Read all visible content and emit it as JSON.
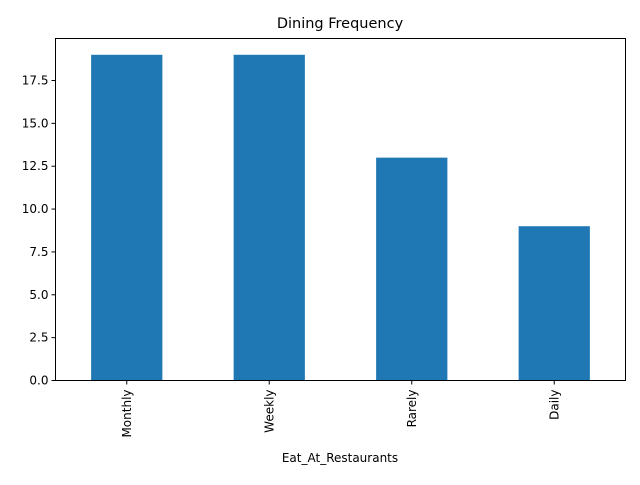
{
  "chart_data": {
    "type": "bar",
    "title": "Dining Frequency",
    "xlabel": "Eat_At_Restaurants",
    "ylabel": "",
    "categories": [
      "Monthly",
      "Weekly",
      "Rarely",
      "Daily"
    ],
    "values": [
      19,
      19,
      13,
      9
    ],
    "ylim": [
      0,
      19.95
    ],
    "yticks": [
      0,
      2.5,
      5,
      7.5,
      10,
      12.5,
      15,
      17.5
    ],
    "ytick_labels": [
      "0.0",
      "2.5",
      "5.0",
      "7.5",
      "10.0",
      "12.5",
      "15.0",
      "17.5"
    ],
    "grid": false,
    "legend": "none",
    "bar_color": "#1f77b4"
  }
}
